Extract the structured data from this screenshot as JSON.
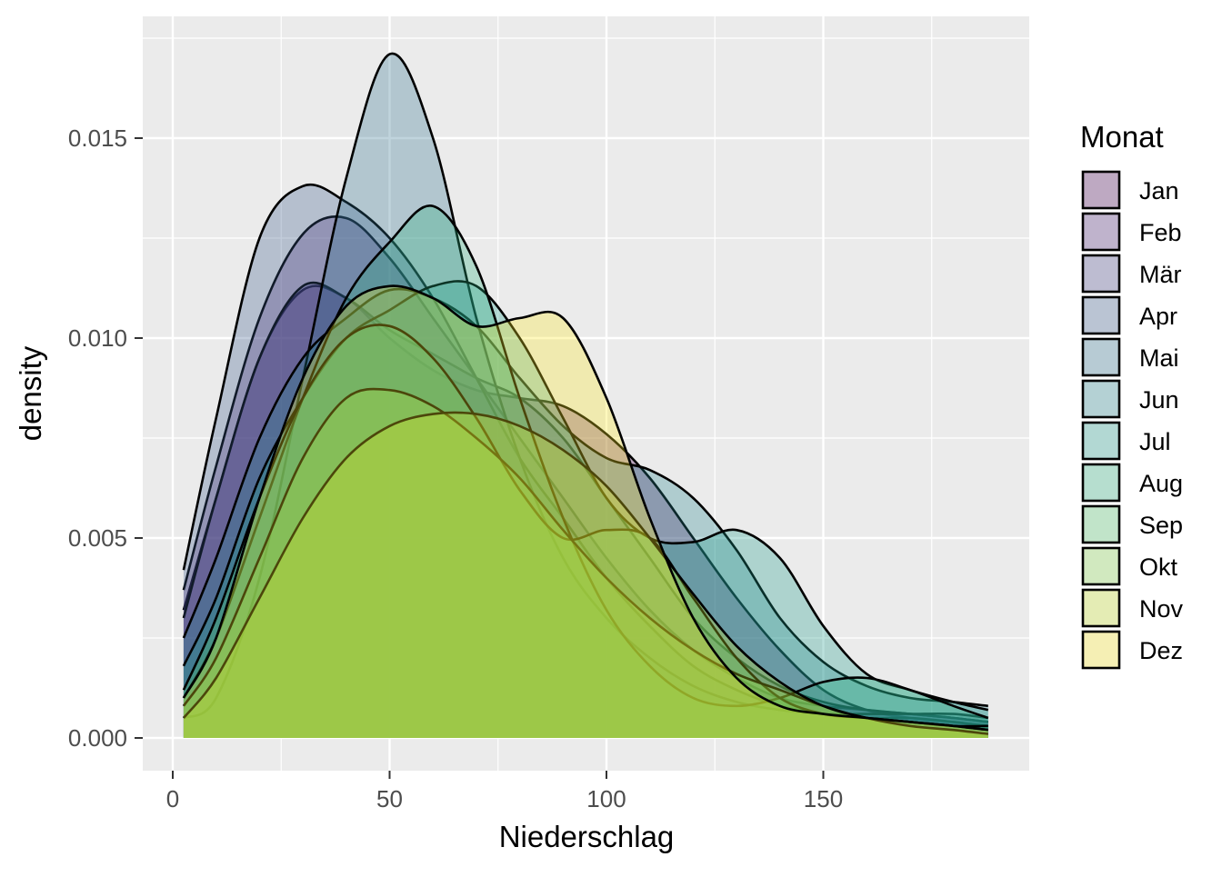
{
  "chart_data": {
    "type": "area",
    "subtype": "density",
    "xlabel": "Niederschlag",
    "ylabel": "density",
    "xlim": [
      -7,
      197
    ],
    "ylim": [
      -0.0008,
      0.018
    ],
    "x_ticks": [
      0,
      50,
      100,
      150
    ],
    "x_tick_labels": [
      "0",
      "50",
      "100",
      "150"
    ],
    "y_ticks": [
      0,
      0.005,
      0.01,
      0.015
    ],
    "y_tick_labels": [
      "0.000",
      "0.005",
      "0.010",
      "0.015"
    ],
    "grid": true,
    "legend": {
      "title": "Monat",
      "position": "right"
    },
    "fill_alpha": 0.3,
    "x": [
      2.5,
      10,
      20,
      30,
      40,
      50,
      60,
      70,
      80,
      90,
      100,
      110,
      120,
      130,
      140,
      150,
      160,
      170,
      180,
      188
    ],
    "series": [
      {
        "name": "Jan",
        "color": "#440154",
        "values": [
          0.0032,
          0.006,
          0.0095,
          0.0112,
          0.011,
          0.01,
          0.0092,
          0.0087,
          0.0085,
          0.0083,
          0.0076,
          0.0065,
          0.005,
          0.0035,
          0.0022,
          0.0012,
          0.0007,
          0.0005,
          0.0004,
          0.0003
        ]
      },
      {
        "name": "Feb",
        "color": "#482173",
        "values": [
          0.0037,
          0.0068,
          0.0105,
          0.0126,
          0.013,
          0.012,
          0.0105,
          0.009,
          0.0075,
          0.006,
          0.0045,
          0.0032,
          0.0022,
          0.0015,
          0.001,
          0.0008,
          0.0007,
          0.0006,
          0.0005,
          0.0004
        ]
      },
      {
        "name": "Mär",
        "color": "#433E85",
        "values": [
          0.003,
          0.006,
          0.0095,
          0.0113,
          0.011,
          0.0102,
          0.0096,
          0.009,
          0.0085,
          0.0075,
          0.006,
          0.0045,
          0.003,
          0.002,
          0.0013,
          0.0009,
          0.0007,
          0.0006,
          0.0005,
          0.0004
        ]
      },
      {
        "name": "Apr",
        "color": "#38598C",
        "values": [
          0.0042,
          0.008,
          0.0125,
          0.0138,
          0.0134,
          0.0125,
          0.011,
          0.009,
          0.007,
          0.0055,
          0.004,
          0.0028,
          0.0018,
          0.0012,
          0.0008,
          0.0006,
          0.0005,
          0.0005,
          0.0004,
          0.0003
        ]
      },
      {
        "name": "Mai",
        "color": "#2D708E",
        "values": [
          0.0005,
          0.001,
          0.004,
          0.009,
          0.014,
          0.0171,
          0.015,
          0.0105,
          0.007,
          0.0045,
          0.003,
          0.002,
          0.0013,
          0.0009,
          0.0007,
          0.0006,
          0.0006,
          0.0006,
          0.0006,
          0.0005
        ]
      },
      {
        "name": "Jun",
        "color": "#25858E",
        "values": [
          0.0025,
          0.0045,
          0.0075,
          0.0095,
          0.0105,
          0.0112,
          0.011,
          0.0103,
          0.009,
          0.0078,
          0.007,
          0.0067,
          0.006,
          0.0047,
          0.003,
          0.0019,
          0.0013,
          0.001,
          0.0009,
          0.0008
        ]
      },
      {
        "name": "Jul",
        "color": "#1E9B8A",
        "values": [
          0.0018,
          0.0035,
          0.0065,
          0.0085,
          0.01,
          0.0107,
          0.0113,
          0.0113,
          0.01,
          0.008,
          0.006,
          0.005,
          0.0049,
          0.0052,
          0.0045,
          0.0028,
          0.0016,
          0.0012,
          0.0009,
          0.0007
        ]
      },
      {
        "name": "Aug",
        "color": "#2BB07F",
        "values": [
          0.001,
          0.0025,
          0.0055,
          0.0085,
          0.011,
          0.0124,
          0.0133,
          0.0118,
          0.0085,
          0.0055,
          0.0032,
          0.0018,
          0.001,
          0.0008,
          0.001,
          0.0014,
          0.0015,
          0.0012,
          0.0008,
          0.0005
        ]
      },
      {
        "name": "Sep",
        "color": "#51C56A",
        "values": [
          0.0012,
          0.003,
          0.006,
          0.0085,
          0.01,
          0.0103,
          0.0095,
          0.008,
          0.0062,
          0.005,
          0.0052,
          0.005,
          0.0035,
          0.002,
          0.001,
          0.0006,
          0.0005,
          0.0004,
          0.0003,
          0.0003
        ]
      },
      {
        "name": "Okt",
        "color": "#85D54A",
        "values": [
          0.0008,
          0.002,
          0.0045,
          0.007,
          0.0085,
          0.0087,
          0.0083,
          0.0075,
          0.0065,
          0.0052,
          0.004,
          0.003,
          0.0022,
          0.0016,
          0.0012,
          0.0008,
          0.0005,
          0.0004,
          0.0003,
          0.0002
        ]
      },
      {
        "name": "Nov",
        "color": "#C2DF23",
        "values": [
          0.0005,
          0.0015,
          0.0035,
          0.0055,
          0.007,
          0.0078,
          0.0081,
          0.0081,
          0.0078,
          0.0072,
          0.0063,
          0.005,
          0.0036,
          0.0023,
          0.0014,
          0.0008,
          0.0005,
          0.0003,
          0.0002,
          0.0001
        ]
      },
      {
        "name": "Dez",
        "color": "#FDE725",
        "values": [
          0.001,
          0.0025,
          0.006,
          0.009,
          0.0108,
          0.0113,
          0.011,
          0.0103,
          0.0105,
          0.0105,
          0.0085,
          0.0055,
          0.003,
          0.0015,
          0.0008,
          0.0006,
          0.0005,
          0.0004,
          0.0003,
          0.0002
        ]
      }
    ]
  }
}
